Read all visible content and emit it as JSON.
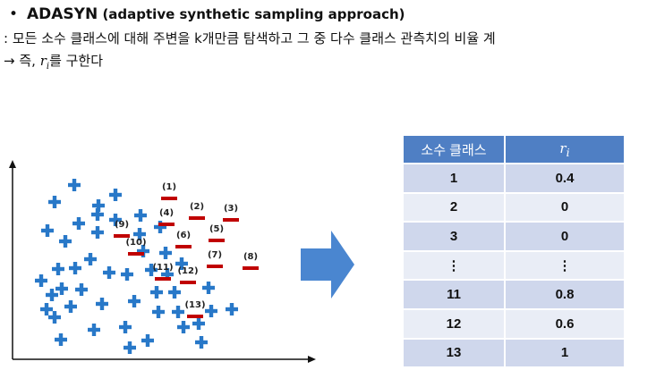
{
  "header": {
    "bullet": "•",
    "title": "ADASYN",
    "subtitle": " (adaptive synthetic sampling approach)",
    "description": ": 모든 소수 클래스에 대해 주변을 k개만큼 탐색하고 그 중 다수 클래스 관측치의 비율 ",
    "description_cut": "계",
    "result_prefix": "→ 즉, ",
    "ri_var": "r",
    "ri_sub": "i",
    "result_suffix": "를 구한다"
  },
  "table": {
    "columns": [
      "소수 클래스",
      "r",
      "i"
    ],
    "rows": [
      {
        "class": "1",
        "ri": "0.4"
      },
      {
        "class": "2",
        "ri": "0"
      },
      {
        "class": "3",
        "ri": "0"
      },
      {
        "class": "⋮",
        "ri": "⋮"
      },
      {
        "class": "11",
        "ri": "0.8"
      },
      {
        "class": "12",
        "ri": "0.6"
      },
      {
        "class": "13",
        "ri": "1"
      }
    ]
  },
  "scatter": {
    "minority_labels": [
      "(1)",
      "(2)",
      "(3)",
      "(4)",
      "(5)",
      "(6)",
      "(7)",
      "(8)",
      "(9)",
      "(10)",
      "(11)",
      "(12)",
      "(13)"
    ],
    "majority_symbol": "+",
    "minority_symbol": "−"
  },
  "colors": {
    "majority": "#2878c8",
    "minority": "#c00000",
    "table_header": "#4f7fc4",
    "table_row_dark": "#cfd7ec",
    "table_row_light": "#e9edf6",
    "arrow": "#4a86d0"
  }
}
